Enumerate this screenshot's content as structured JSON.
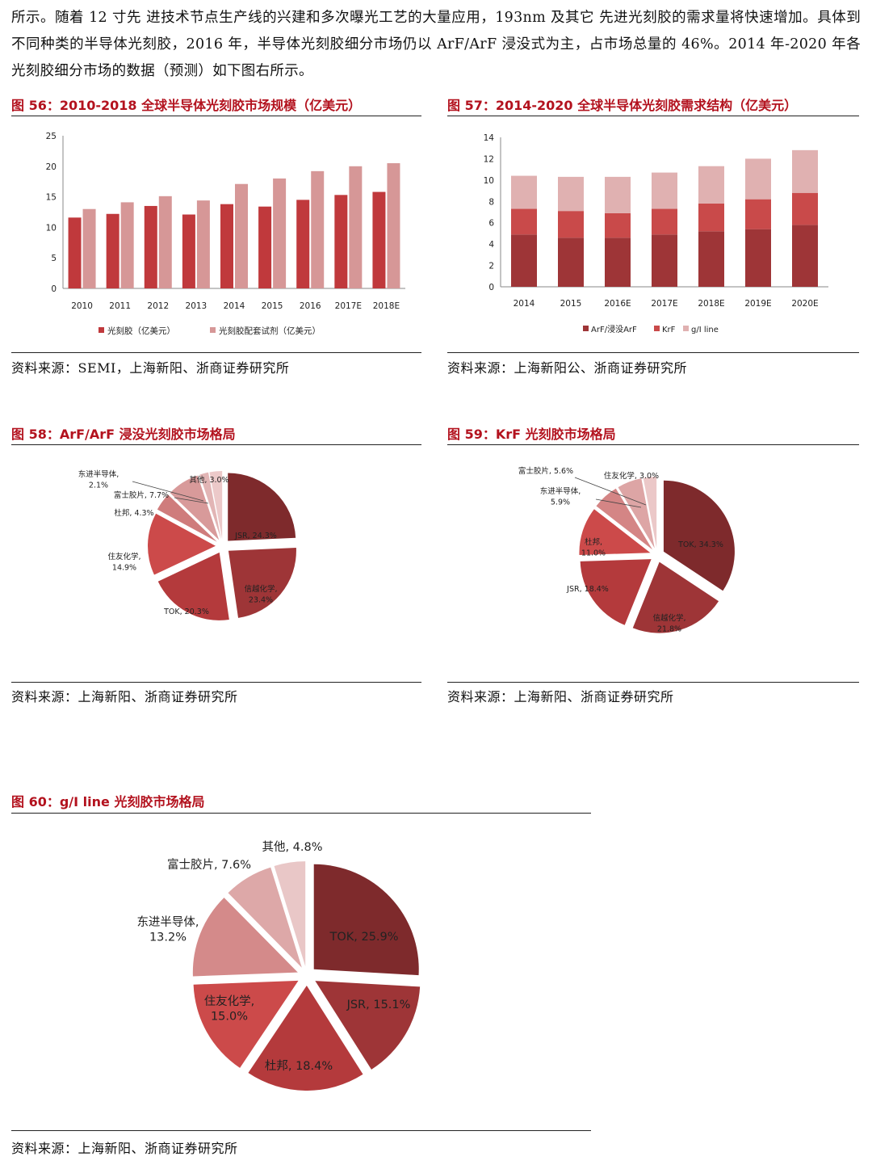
{
  "intro_text": "所示。随着 12 寸先 进技术节点生产线的兴建和多次曝光工艺的大量应用，193nm 及其它 先进光刻胶的需求量将快速增加。具体到不同种类的半导体光刻胶，2016 年，半导体光刻胶细分市场仍以 ArF/ArF 浸没式为主，占市场总量的 46%。2014 年-2020 年各光刻胶细分市场的数据（预测）如下图右所示。",
  "figures": {
    "fig56": {
      "title": "图 56：2010-2018 全球半导体光刻胶市场规模（亿美元）",
      "source": "资料来源：SEMI，上海新阳、浙商证券研究所"
    },
    "fig57": {
      "title": "图 57：2014-2020 全球半导体光刻胶需求结构（亿美元）",
      "source": "资料来源：上海新阳公、浙商证券研究所"
    },
    "fig58": {
      "title": "图 58：ArF/ArF 浸没光刻胶市场格局",
      "source": "资料来源：上海新阳、浙商证券研究所"
    },
    "fig59": {
      "title": "图 59：KrF 光刻胶市场格局",
      "source": "资料来源：上海新阳、浙商证券研究所"
    },
    "fig60": {
      "title": "图 60：g/I line 光刻胶市场格局",
      "source": "资料来源：上海新阳、浙商证券研究所"
    }
  },
  "colors": {
    "dark": "#7e2a2c",
    "red": "#c0393c",
    "pink": "#d69797",
    "light": "#e8c6c6",
    "lighter": "#efd4d4",
    "axis": "#8a8a8a"
  },
  "chart_data": [
    {
      "id": "fig56",
      "type": "bar",
      "categories": [
        "2010",
        "2011",
        "2012",
        "2013",
        "2014",
        "2015",
        "2016",
        "2017E",
        "2018E"
      ],
      "series": [
        {
          "name": "光刻胶（亿美元）",
          "color": "#c0393c",
          "values": [
            11.6,
            12.2,
            13.5,
            12.1,
            13.8,
            13.4,
            14.5,
            15.3,
            15.8
          ]
        },
        {
          "name": "光刻胶配套试剂（亿美元）",
          "color": "#d69797",
          "values": [
            13.0,
            14.1,
            15.1,
            14.4,
            17.1,
            18.0,
            19.2,
            20.0,
            20.5
          ]
        }
      ],
      "yticks": [
        "0",
        "5",
        "10",
        "15",
        "20",
        "25"
      ],
      "ylim": [
        0,
        25
      ],
      "legend": "bottom"
    },
    {
      "id": "fig57",
      "type": "bar",
      "stacked": true,
      "categories": [
        "2014",
        "2015",
        "2016E",
        "2017E",
        "2018E",
        "2019E",
        "2020E"
      ],
      "series": [
        {
          "name": "ArF/浸没ArF",
          "color": "#9e3537",
          "values": [
            4.9,
            4.6,
            4.6,
            4.9,
            5.2,
            5.4,
            5.8
          ]
        },
        {
          "name": "KrF",
          "color": "#c94a4a",
          "values": [
            2.4,
            2.5,
            2.3,
            2.4,
            2.6,
            2.8,
            3.0
          ]
        },
        {
          "name": "g/I line",
          "color": "#e0b1b1",
          "values": [
            3.1,
            3.2,
            3.4,
            3.4,
            3.5,
            3.8,
            4.0
          ]
        }
      ],
      "yticks": [
        "0",
        "2",
        "4",
        "6",
        "8",
        "10",
        "12",
        "14"
      ],
      "ylim": [
        0,
        14
      ],
      "legend": "bottom"
    },
    {
      "id": "fig58",
      "type": "pie",
      "slices": [
        {
          "label": "JSR, 24.3%",
          "value": 24.3,
          "color": "#7e2a2c"
        },
        {
          "label": "信越化学,\n23.4%",
          "value": 23.4,
          "color": "#9e3537"
        },
        {
          "label": "TOK, 20.3%",
          "value": 20.3,
          "color": "#b43a3c"
        },
        {
          "label": "住友化学,\n14.9%",
          "value": 14.9,
          "color": "#cc4a4a"
        },
        {
          "label": "杜邦, 4.3%",
          "value": 4.3,
          "color": "#cf7c7c"
        },
        {
          "label": "富士胶片, 7.7%",
          "value": 7.7,
          "color": "#d89a9a"
        },
        {
          "label": "东进半导体,\n2.1%",
          "value": 2.1,
          "color": "#e2b5b5"
        },
        {
          "label": "其他, 3.0%",
          "value": 3.0,
          "color": "#ecc9c9"
        }
      ]
    },
    {
      "id": "fig59",
      "type": "pie",
      "slices": [
        {
          "label": "TOK, 34.3%",
          "value": 34.3,
          "color": "#7e2a2c"
        },
        {
          "label": "信越化学,\n21.8%",
          "value": 21.8,
          "color": "#9e3537"
        },
        {
          "label": "JSR, 18.4%",
          "value": 18.4,
          "color": "#b43a3c"
        },
        {
          "label": "杜邦,\n11.0%",
          "value": 11.0,
          "color": "#cc4a4a"
        },
        {
          "label": "东进半导体,\n5.9%",
          "value": 5.9,
          "color": "#d48585"
        },
        {
          "label": "富士胶片, 5.6%",
          "value": 5.6,
          "color": "#dda5a5"
        },
        {
          "label": "住友化学, 3.0%",
          "value": 3.0,
          "color": "#ebc8c8"
        }
      ]
    },
    {
      "id": "fig60",
      "type": "pie",
      "slices": [
        {
          "label": "TOK, 25.9%",
          "value": 25.9,
          "color": "#7e2a2c"
        },
        {
          "label": "JSR, 15.1%",
          "value": 15.1,
          "color": "#9e3537"
        },
        {
          "label": "杜邦, 18.4%",
          "value": 18.4,
          "color": "#b43a3c"
        },
        {
          "label": "住友化学,\n15.0%",
          "value": 15.0,
          "color": "#cc4a4a"
        },
        {
          "label": "东进半导体,\n13.2%",
          "value": 13.2,
          "color": "#d48a8a"
        },
        {
          "label": "富士胶片, 7.6%",
          "value": 7.6,
          "color": "#dda8a8"
        },
        {
          "label": "其他, 4.8%",
          "value": 4.8,
          "color": "#e9c7c7"
        }
      ]
    }
  ]
}
